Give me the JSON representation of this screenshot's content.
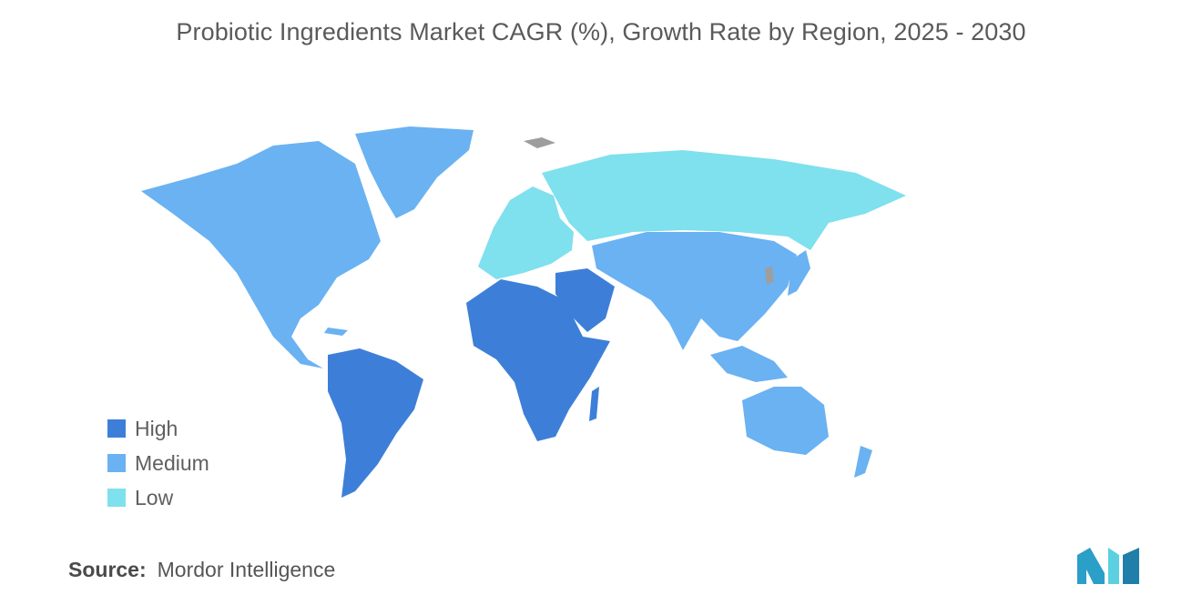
{
  "title": "Probiotic Ingredients Market CAGR (%), Growth Rate by Region, 2025 - 2030",
  "legend": [
    {
      "label": "High",
      "color": "#3d7fd8"
    },
    {
      "label": "Medium",
      "color": "#6ab2f2"
    },
    {
      "label": "Low",
      "color": "#7fe0ee"
    }
  ],
  "no_data_color": "#9e9e9e",
  "regions": [
    {
      "name": "North America",
      "level": "Medium"
    },
    {
      "name": "Greenland",
      "level": "Medium"
    },
    {
      "name": "South America",
      "level": "High"
    },
    {
      "name": "Africa",
      "level": "High"
    },
    {
      "name": "Middle East",
      "level": "High"
    },
    {
      "name": "Europe",
      "level": "Low"
    },
    {
      "name": "Russia",
      "level": "Low"
    },
    {
      "name": "Asia-Pacific",
      "level": "Medium"
    }
  ],
  "source": {
    "label": "Source:",
    "text": "Mordor Intelligence"
  },
  "logo_icon": "mordor-intelligence-logo-icon"
}
